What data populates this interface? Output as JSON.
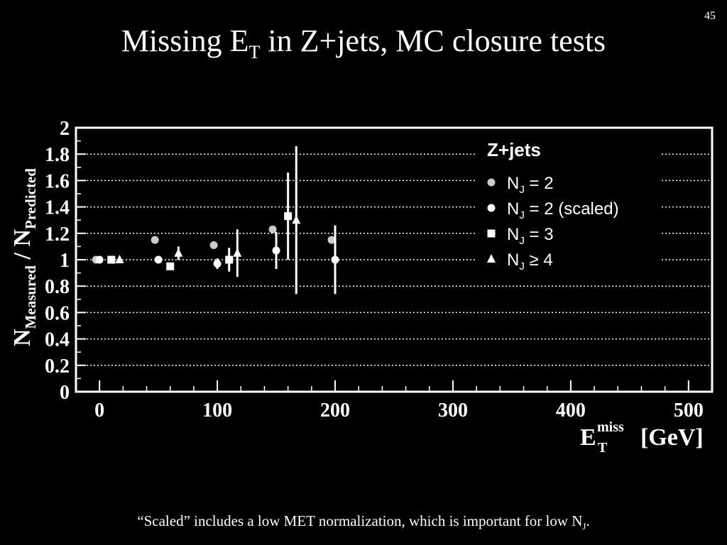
{
  "slide": {
    "page_number": "45",
    "title_main": "Missing E",
    "title_sub": "T",
    "title_rest": " in Z+jets, MC closure tests",
    "footnote_main": "“Scaled” includes a low MET normalization, which is important for low N",
    "footnote_sub": "J",
    "footnote_end": "."
  },
  "chart_data": {
    "type": "scatter",
    "title": "",
    "xlim": [
      -20,
      520
    ],
    "ylim": [
      0,
      2
    ],
    "x_ticks": [
      "0",
      "100",
      "200",
      "300",
      "400",
      "500"
    ],
    "x_tick_values": [
      0,
      100,
      200,
      300,
      400,
      500
    ],
    "y_ticks": [
      "0",
      "0.2",
      "0.4",
      "0.6",
      "0.8",
      "1",
      "1.2",
      "1.4",
      "1.6",
      "1.8",
      "2"
    ],
    "y_tick_values": [
      0,
      0.2,
      0.4,
      0.6,
      0.8,
      1,
      1.2,
      1.4,
      1.6,
      1.8,
      2
    ],
    "xlabel": {
      "main": "E",
      "sup": "miss",
      "sub": "T",
      "unit": "[GeV]"
    },
    "ylabel": {
      "n1": "N",
      "sub1": "Measured",
      "sep": " / ",
      "n2": "N",
      "sub2": "Predicted"
    },
    "grid": {
      "horizontal_dotted": true
    },
    "legend": {
      "title": "Z+jets",
      "placement": "top-right",
      "entries": [
        {
          "marker": "circle",
          "color": "#cccccc",
          "n": "N",
          "sub": "J",
          "text": " = 2"
        },
        {
          "marker": "circle",
          "color": "#ffffff",
          "n": "N",
          "sub": "J",
          "text": " = 2 (scaled)"
        },
        {
          "marker": "square",
          "color": "#ffffff",
          "n": "N",
          "sub": "J",
          "text": " = 3"
        },
        {
          "marker": "triangle",
          "color": "#ffffff",
          "n": "N",
          "sub": "J",
          "text": " ≥ 4"
        }
      ]
    },
    "series": [
      {
        "marker": "circle",
        "color": "#cccccc",
        "points": [
          {
            "x": -3,
            "y": 1.0,
            "err": 0.0
          },
          {
            "x": 47,
            "y": 1.15,
            "err": 0.0
          },
          {
            "x": 97,
            "y": 1.11,
            "err": 0.0
          },
          {
            "x": 147,
            "y": 1.23,
            "err": 0.0
          },
          {
            "x": 197,
            "y": 1.15,
            "err": 0.0
          }
        ]
      },
      {
        "marker": "circle",
        "color": "#ffffff",
        "points": [
          {
            "x": 0,
            "y": 1.0,
            "err": 0.0
          },
          {
            "x": 50,
            "y": 1.0,
            "err": 0.0
          },
          {
            "x": 100,
            "y": 0.97,
            "err": 0.04
          },
          {
            "x": 150,
            "y": 1.07,
            "err": 0.14
          },
          {
            "x": 200,
            "y": 1.0,
            "err": 0.26
          }
        ]
      },
      {
        "marker": "square",
        "color": "#ffffff",
        "points": [
          {
            "x": 10,
            "y": 1.0,
            "err": 0.0
          },
          {
            "x": 60,
            "y": 0.95,
            "err": 0.0
          },
          {
            "x": 110,
            "y": 1.0,
            "err": 0.09
          },
          {
            "x": 160,
            "y": 1.33,
            "err": 0.33
          }
        ]
      },
      {
        "marker": "triangle",
        "color": "#ffffff",
        "points": [
          {
            "x": 17,
            "y": 1.0,
            "err": 0.0
          },
          {
            "x": 67,
            "y": 1.05,
            "err": 0.05
          },
          {
            "x": 117,
            "y": 1.05,
            "err": 0.18
          },
          {
            "x": 167,
            "y": 1.3,
            "err": 0.56
          }
        ]
      }
    ]
  }
}
